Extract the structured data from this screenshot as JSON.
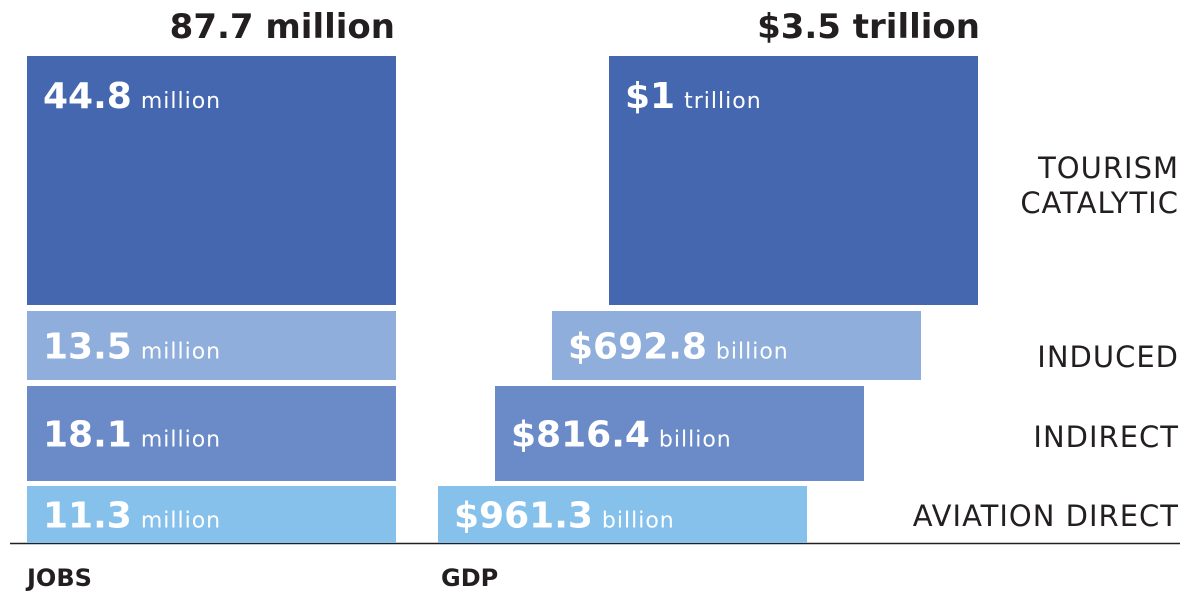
{
  "categories": [
    [
      "TOURISM",
      "CATALYTIC"
    ],
    [
      "INDUCED"
    ],
    [
      "INDIRECT"
    ],
    [
      "AVIATION DIRECT"
    ]
  ],
  "columns": [
    {
      "label": "JOBS",
      "total": "87.7 million",
      "segments": [
        {
          "value": "44.8",
          "unit": "million"
        },
        {
          "value": "13.5",
          "unit": "million"
        },
        {
          "value": "18.1",
          "unit": "million"
        },
        {
          "value": "11.3",
          "unit": "million"
        }
      ]
    },
    {
      "label": "GDP",
      "total": "$3.5 trillion",
      "segments": [
        {
          "value": "$1",
          "unit": "trillion"
        },
        {
          "value": "$692.8",
          "unit": "billion"
        },
        {
          "value": "$816.4",
          "unit": "billion"
        },
        {
          "value": "$961.3",
          "unit": "billion"
        }
      ]
    }
  ]
}
